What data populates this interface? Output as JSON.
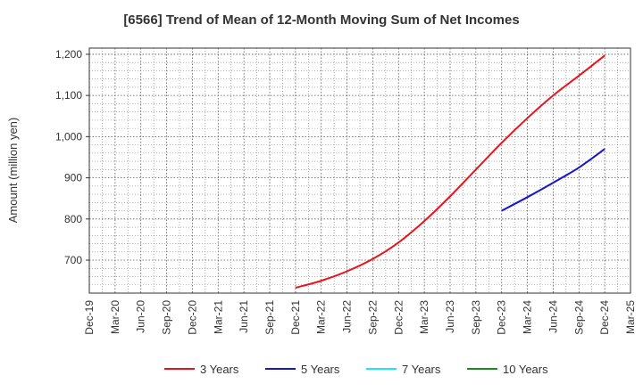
{
  "chart_data": {
    "type": "line",
    "title": "[6566]  Trend of Mean of 12-Month Moving Sum of Net Incomes",
    "xlabel": "",
    "ylabel": "Amount (million yen)",
    "ylim": [
      620,
      1215
    ],
    "yticks": [
      700,
      800,
      900,
      1000,
      1100,
      1200
    ],
    "ytick_labels": [
      "700",
      "800",
      "900",
      "1,000",
      "1,100",
      "1,200"
    ],
    "x_categories": [
      "Dec-19",
      "Mar-20",
      "Jun-20",
      "Sep-20",
      "Dec-20",
      "Mar-21",
      "Jun-21",
      "Sep-21",
      "Dec-21",
      "Mar-22",
      "Jun-22",
      "Sep-22",
      "Dec-22",
      "Mar-23",
      "Jun-23",
      "Sep-23",
      "Dec-23",
      "Mar-24",
      "Jun-24",
      "Sep-24",
      "Dec-24",
      "Mar-25"
    ],
    "grid": true,
    "legend_position": "bottom",
    "series": [
      {
        "name": "3 Years",
        "color": "#e8141b",
        "x": [
          "Dec-21",
          "Mar-22",
          "Jun-22",
          "Sep-22",
          "Dec-22",
          "Mar-23",
          "Jun-23",
          "Sep-23",
          "Dec-23",
          "Mar-24",
          "Jun-24",
          "Sep-24",
          "Dec-24"
        ],
        "values": [
          633,
          650,
          673,
          703,
          743,
          795,
          855,
          920,
          985,
          1045,
          1100,
          1148,
          1197
        ]
      },
      {
        "name": "5 Years",
        "color": "#1515cf",
        "x": [
          "Dec-23",
          "Mar-24",
          "Jun-24",
          "Sep-24",
          "Dec-24"
        ],
        "values": [
          820,
          853,
          888,
          925,
          970
        ]
      },
      {
        "name": "7 Years",
        "color": "#1ee6f0",
        "x": [],
        "values": []
      },
      {
        "name": "10 Years",
        "color": "#1c8a1c",
        "x": [],
        "values": []
      }
    ]
  }
}
